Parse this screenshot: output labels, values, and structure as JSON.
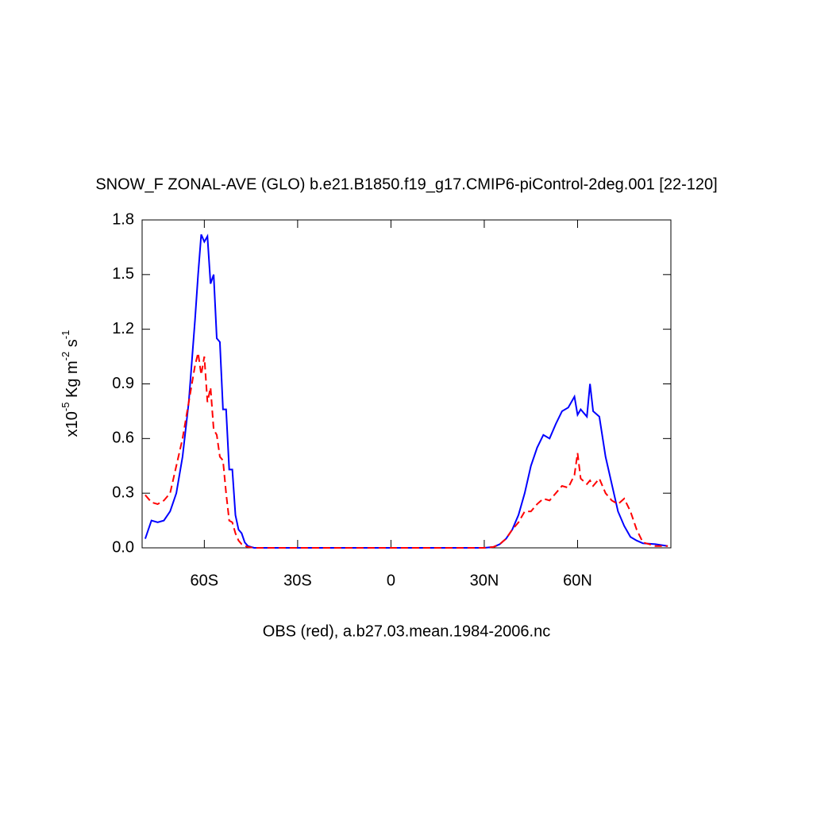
{
  "chart_data": {
    "type": "line",
    "title": "SNOW_F ZONAL-AVE (GLO) b.e21.B1850.f19_g17.CMIP6-piControl-2deg.001 [22-120]",
    "x_label": "OBS (red), a.b27.03.mean.1984-2006.nc",
    "y_label": [
      "x10",
      "-5",
      " Kg m",
      "-2",
      " s",
      "-1"
    ],
    "x": [
      -79,
      -77,
      -75,
      -73,
      -71,
      -69,
      -67,
      -65,
      -63,
      -62,
      -61,
      -60,
      -59,
      -58,
      -57,
      -56,
      -55,
      -54,
      -53,
      -52,
      -51,
      -50,
      -49,
      -48,
      -47,
      -46,
      -44,
      -30,
      -10,
      10,
      30,
      33,
      35,
      37,
      39,
      41,
      43,
      45,
      47,
      49,
      51,
      53,
      55,
      57,
      59,
      60,
      61,
      63,
      64,
      65,
      67,
      69,
      71,
      73,
      75,
      77,
      79,
      81,
      85,
      89
    ],
    "series": [
      {
        "color": "#0000ff",
        "dash": "none",
        "values": [
          0.05,
          0.15,
          0.14,
          0.15,
          0.2,
          0.3,
          0.5,
          0.8,
          1.25,
          1.5,
          1.72,
          1.68,
          1.71,
          1.45,
          1.5,
          1.15,
          1.13,
          0.76,
          0.76,
          0.43,
          0.43,
          0.18,
          0.1,
          0.08,
          0.03,
          0.01,
          0,
          0,
          0,
          0,
          0,
          0.005,
          0.02,
          0.05,
          0.1,
          0.18,
          0.3,
          0.45,
          0.55,
          0.62,
          0.6,
          0.68,
          0.75,
          0.77,
          0.83,
          0.73,
          0.76,
          0.72,
          0.9,
          0.75,
          0.72,
          0.5,
          0.35,
          0.2,
          0.12,
          0.06,
          0.04,
          0.025,
          0.02,
          0.01
        ]
      },
      {
        "color": "#ff0000",
        "dash": "9 5",
        "values": [
          0.29,
          0.25,
          0.24,
          0.26,
          0.3,
          0.45,
          0.6,
          0.8,
          1.0,
          1.07,
          0.95,
          1.05,
          0.8,
          0.88,
          0.65,
          0.62,
          0.5,
          0.48,
          0.3,
          0.15,
          0.14,
          0.08,
          0.04,
          0.02,
          0.01,
          0.005,
          0,
          0,
          0,
          0,
          0,
          0.005,
          0.02,
          0.05,
          0.1,
          0.14,
          0.2,
          0.2,
          0.24,
          0.27,
          0.26,
          0.3,
          0.34,
          0.33,
          0.4,
          0.52,
          0.38,
          0.35,
          0.37,
          0.34,
          0.38,
          0.3,
          0.26,
          0.24,
          0.27,
          0.2,
          0.1,
          0.03,
          0.01,
          0.01
        ]
      }
    ],
    "xlim": [
      -80,
      90
    ],
    "xticks": [
      {
        "value": -60,
        "label": "60S"
      },
      {
        "value": -30,
        "label": "30S"
      },
      0,
      {
        "value": 30,
        "label": "30N"
      },
      {
        "value": 60,
        "label": "60N"
      }
    ],
    "ylim": [
      0,
      1.8
    ],
    "yticks": [
      {
        "value": 0,
        "label": "0.0"
      },
      0.3,
      0.6,
      0.9,
      1.2,
      1.5,
      1.8
    ],
    "grid": false
  }
}
